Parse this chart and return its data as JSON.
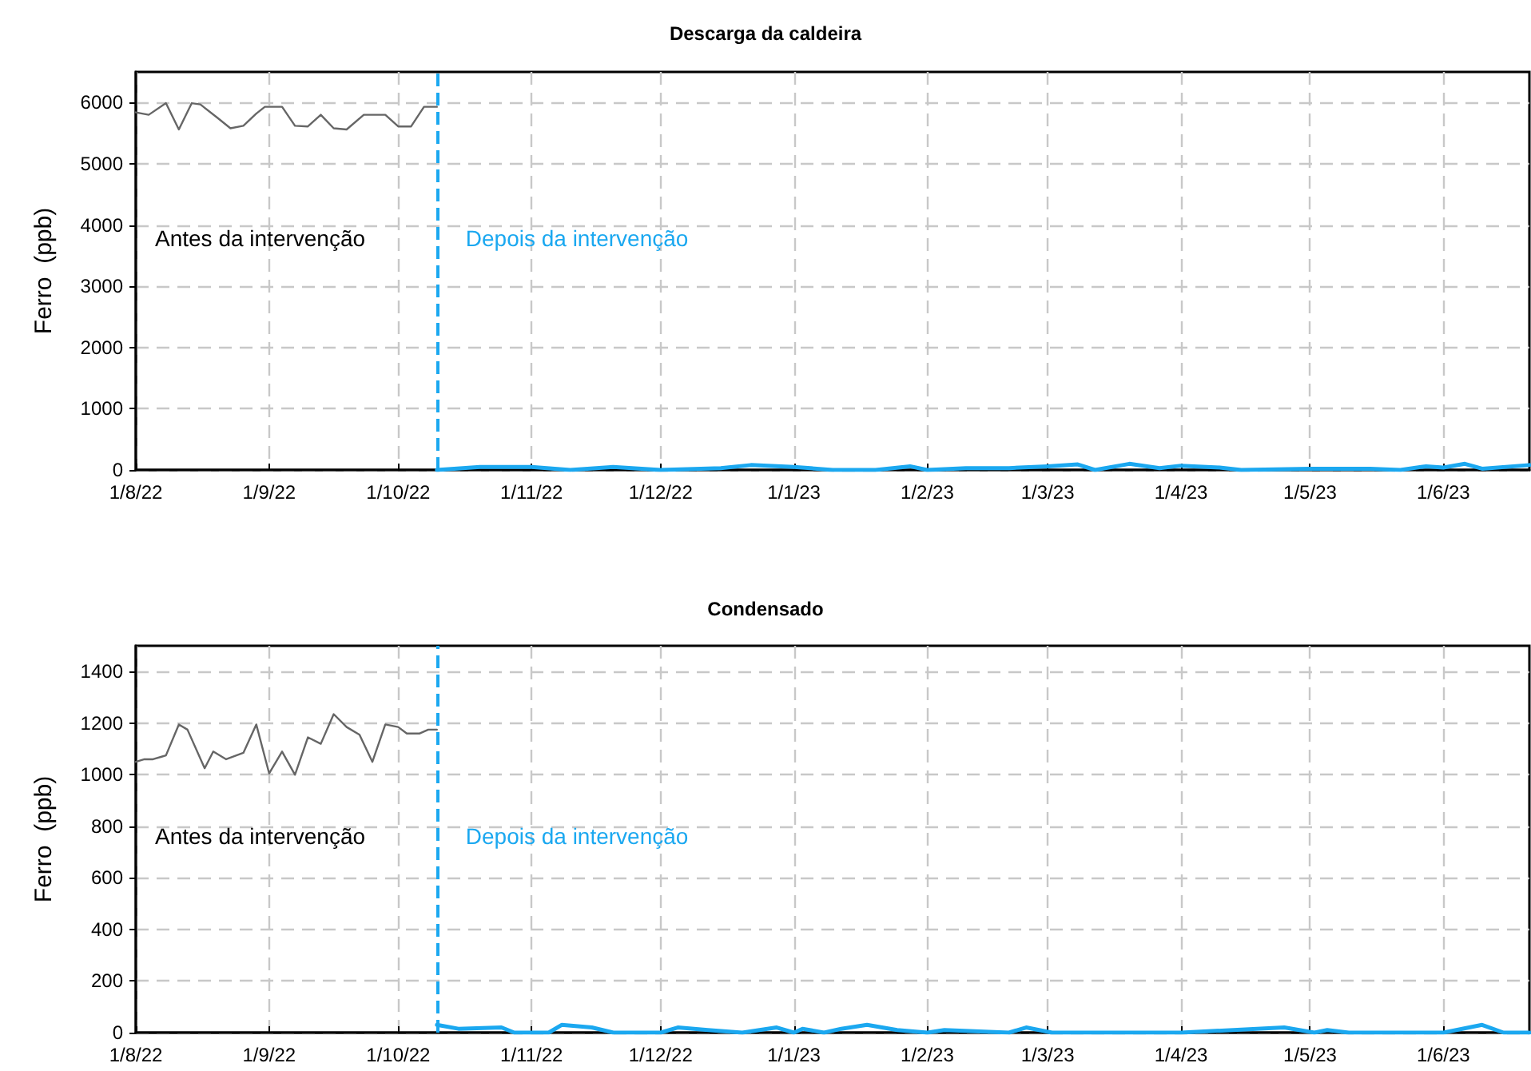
{
  "chart_data": [
    {
      "type": "line",
      "title": "Descarga da caldeira",
      "ylabel": "Ferro  (ppb)",
      "xlim": [
        "2022-08-01",
        "2023-06-21"
      ],
      "xticks": [
        {
          "value": "2022-08-01",
          "label": "1/8/22"
        },
        {
          "value": "2022-09-01",
          "label": "1/9/22"
        },
        {
          "value": "2022-10-01",
          "label": "1/10/22"
        },
        {
          "value": "2022-11-01",
          "label": "1/11/22"
        },
        {
          "value": "2022-12-01",
          "label": "1/12/22"
        },
        {
          "value": "2023-01-01",
          "label": "1/1/23"
        },
        {
          "value": "2023-02-01",
          "label": "1/2/23"
        },
        {
          "value": "2023-03-01",
          "label": "1/3/23"
        },
        {
          "value": "2023-04-01",
          "label": "1/4/23"
        },
        {
          "value": "2023-05-01",
          "label": "1/5/23"
        },
        {
          "value": "2023-06-01",
          "label": "1/6/23"
        }
      ],
      "ylim": [
        0,
        6500
      ],
      "yticks": [
        0,
        1000,
        2000,
        3000,
        4000,
        5000,
        6000
      ],
      "grid": true,
      "marker": "none",
      "line_style": "solid",
      "series": [
        {
          "color": "#666666",
          "x": [
            "2022-08-01",
            "2022-08-04",
            "2022-08-08",
            "2022-08-11",
            "2022-08-14",
            "2022-08-16",
            "2022-08-20",
            "2022-08-23",
            "2022-08-26",
            "2022-08-29",
            "2022-08-31",
            "2022-09-04",
            "2022-09-07",
            "2022-09-10",
            "2022-09-13",
            "2022-09-16",
            "2022-09-19",
            "2022-09-23",
            "2022-09-28",
            "2022-10-01",
            "2022-10-04",
            "2022-10-07",
            "2022-10-10"
          ],
          "values": [
            5840,
            5800,
            5990,
            5560,
            5990,
            5970,
            5750,
            5580,
            5620,
            5820,
            5930,
            5930,
            5620,
            5610,
            5800,
            5580,
            5560,
            5800,
            5800,
            5610,
            5610,
            5930,
            5930
          ]
        },
        {
          "color": "#1ba8f0",
          "x": [
            "2022-10-10",
            "2022-10-20",
            "2022-11-01",
            "2022-11-10",
            "2022-11-20",
            "2022-12-01",
            "2022-12-15",
            "2022-12-22",
            "2023-01-01",
            "2023-01-10",
            "2023-01-20",
            "2023-01-28",
            "2023-02-01",
            "2023-02-10",
            "2023-02-20",
            "2023-03-01",
            "2023-03-08",
            "2023-03-12",
            "2023-03-20",
            "2023-03-27",
            "2023-04-01",
            "2023-04-10",
            "2023-04-15",
            "2023-05-01",
            "2023-05-15",
            "2023-05-22",
            "2023-05-28",
            "2023-06-01",
            "2023-06-06",
            "2023-06-10",
            "2023-06-21"
          ],
          "values": [
            0,
            50,
            50,
            0,
            50,
            0,
            30,
            80,
            50,
            0,
            0,
            60,
            0,
            30,
            30,
            60,
            90,
            0,
            100,
            30,
            70,
            40,
            0,
            20,
            20,
            0,
            60,
            40,
            100,
            20,
            80
          ]
        }
      ],
      "ref_lines": [
        {
          "axis": "x",
          "value": "2022-10-10",
          "color": "#1ba8f0",
          "line_style": "dashed"
        }
      ],
      "annotations": [
        "Antes da intervenção",
        "Depois da intervenção"
      ]
    },
    {
      "type": "line",
      "title": "Condensado",
      "ylabel": "Ferro  (ppb)",
      "xlim": [
        "2022-08-01",
        "2023-06-21"
      ],
      "xticks": [
        {
          "value": "2022-08-01",
          "label": "1/8/22"
        },
        {
          "value": "2022-09-01",
          "label": "1/9/22"
        },
        {
          "value": "2022-10-01",
          "label": "1/10/22"
        },
        {
          "value": "2022-11-01",
          "label": "1/11/22"
        },
        {
          "value": "2022-12-01",
          "label": "1/12/22"
        },
        {
          "value": "2023-01-01",
          "label": "1/1/23"
        },
        {
          "value": "2023-02-01",
          "label": "1/2/23"
        },
        {
          "value": "2023-03-01",
          "label": "1/3/23"
        },
        {
          "value": "2023-04-01",
          "label": "1/4/23"
        },
        {
          "value": "2023-05-01",
          "label": "1/5/23"
        },
        {
          "value": "2023-06-01",
          "label": "1/6/23"
        }
      ],
      "ylim": [
        0,
        1500
      ],
      "yticks": [
        0,
        200,
        400,
        600,
        800,
        1000,
        1200,
        1400
      ],
      "grid": true,
      "marker": "none",
      "line_style": "solid",
      "series": [
        {
          "color": "#666666",
          "x": [
            "2022-08-01",
            "2022-08-03",
            "2022-08-05",
            "2022-08-07",
            "2022-08-08",
            "2022-08-11",
            "2022-08-13",
            "2022-08-17",
            "2022-08-19",
            "2022-08-22",
            "2022-08-26",
            "2022-08-29",
            "2022-09-01",
            "2022-09-04",
            "2022-09-07",
            "2022-09-10",
            "2022-09-13",
            "2022-09-16",
            "2022-09-19",
            "2022-09-22",
            "2022-09-25",
            "2022-09-28",
            "2022-10-01",
            "2022-10-03",
            "2022-10-06",
            "2022-10-08",
            "2022-10-10"
          ],
          "values": [
            1050,
            1060,
            1060,
            1070,
            1075,
            1195,
            1175,
            1025,
            1090,
            1060,
            1085,
            1195,
            1005,
            1090,
            1000,
            1145,
            1120,
            1235,
            1185,
            1155,
            1050,
            1195,
            1185,
            1160,
            1160,
            1175,
            1175
          ]
        },
        {
          "color": "#1ba8f0",
          "x": [
            "2022-10-10",
            "2022-10-15",
            "2022-10-25",
            "2022-10-28",
            "2022-11-05",
            "2022-11-08",
            "2022-11-15",
            "2022-11-20",
            "2022-12-01",
            "2022-12-05",
            "2022-12-12",
            "2022-12-20",
            "2022-12-28",
            "2023-01-01",
            "2023-01-03",
            "2023-01-08",
            "2023-01-12",
            "2023-01-18",
            "2023-01-25",
            "2023-02-01",
            "2023-02-05",
            "2023-02-20",
            "2023-02-24",
            "2023-03-02",
            "2023-04-01",
            "2023-04-25",
            "2023-05-02",
            "2023-05-05",
            "2023-05-10",
            "2023-06-01",
            "2023-06-10",
            "2023-06-15",
            "2023-06-21"
          ],
          "values": [
            30,
            15,
            20,
            0,
            0,
            30,
            20,
            0,
            0,
            20,
            10,
            0,
            20,
            0,
            15,
            0,
            15,
            30,
            10,
            0,
            10,
            0,
            20,
            0,
            0,
            20,
            0,
            10,
            0,
            0,
            30,
            0,
            0
          ]
        }
      ],
      "ref_lines": [
        {
          "axis": "x",
          "value": "2022-10-10",
          "color": "#1ba8f0",
          "line_style": "dashed"
        }
      ],
      "annotations": [
        "Antes da intervenção",
        "Depois da intervenção"
      ]
    }
  ]
}
